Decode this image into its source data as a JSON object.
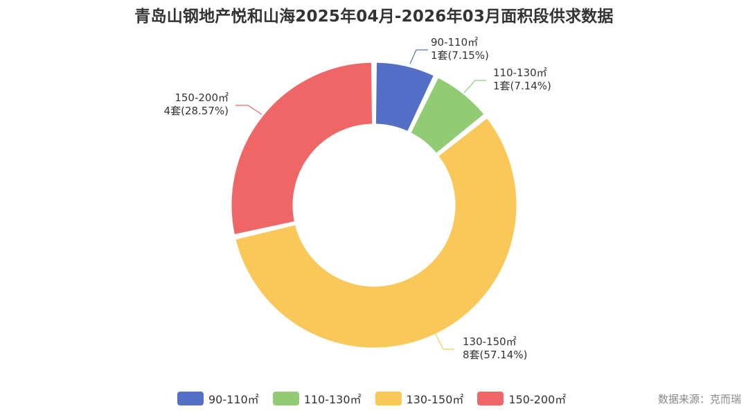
{
  "chart_data": {
    "type": "pie",
    "title": "青岛山钢地产悦和山海2025年04月-2026年03月面积段供求数据",
    "slices": [
      {
        "name": "90-110㎡",
        "count_label": "1套(7.15%)",
        "percent": 7.15,
        "color": "#5470c6"
      },
      {
        "name": "110-130㎡",
        "count_label": "1套(7.14%)",
        "percent": 7.14,
        "color": "#91cc75"
      },
      {
        "name": "130-150㎡",
        "count_label": "8套(57.14%)",
        "percent": 57.14,
        "color": "#fac858"
      },
      {
        "name": "150-200㎡",
        "count_label": "4套(28.57%)",
        "percent": 28.57,
        "color": "#ee6666"
      }
    ],
    "legend_position": "bottom"
  },
  "source": "数据来源：克而瑞"
}
